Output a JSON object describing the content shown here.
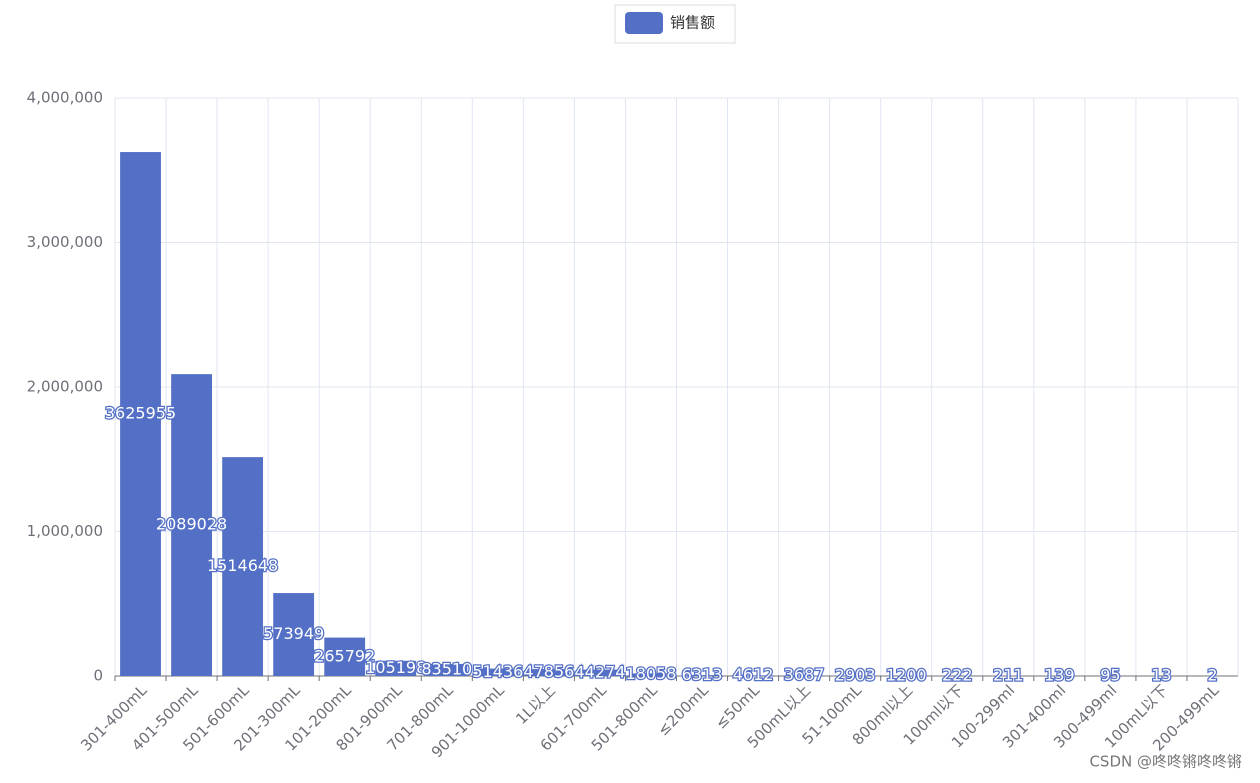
{
  "chart_data": {
    "type": "bar",
    "legend": "销售额",
    "categories": [
      "301-400mL",
      "401-500mL",
      "501-600mL",
      "201-300mL",
      "101-200mL",
      "801-900mL",
      "701-800mL",
      "901-1000mL",
      "1L以上",
      "601-700mL",
      "501-800mL",
      "≤200mL",
      "≤50mL",
      "500mL以上",
      "51-100mL",
      "800ml以上",
      "100ml以下",
      "100-299ml",
      "301-400ml",
      "300-499ml",
      "100mL以下",
      "200-499mL"
    ],
    "values": [
      3625955,
      2089028,
      1514648,
      573949,
      265792,
      105198,
      83510,
      51436,
      47856,
      44274,
      18058,
      6313,
      4612,
      3687,
      2903,
      1200,
      222,
      211,
      139,
      95,
      13,
      2
    ],
    "color": "#5470c6",
    "ylim": [
      0,
      4000000
    ],
    "yticks": [
      0,
      {
        "value": 1000000,
        "label": "1,000,000"
      },
      {
        "value": 2000000,
        "label": "2,000,000"
      },
      {
        "value": 3000000,
        "label": "3,000,000"
      },
      {
        "value": 4000000,
        "label": "4,000,000"
      }
    ],
    "grid": true,
    "watermark": "CSDN @咚咚锵咚咚锵"
  }
}
